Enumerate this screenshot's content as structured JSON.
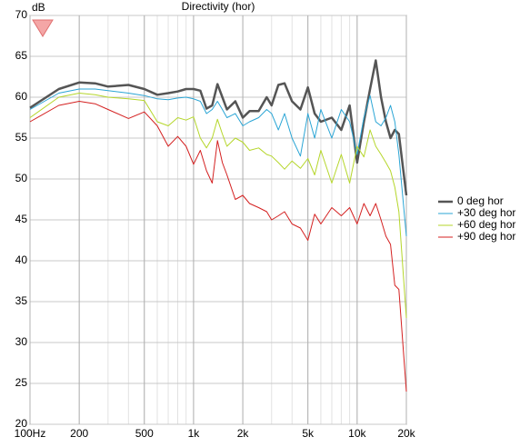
{
  "chart_data": {
    "type": "line",
    "title": "Directivity (hor)",
    "y_label": "dB",
    "x_scale": "log",
    "grid": true,
    "minor_grid": true,
    "legend": "right",
    "x": [
      100,
      150,
      200,
      250,
      300,
      400,
      500,
      600,
      700,
      800,
      900,
      1000,
      1100,
      1200,
      1300,
      1400,
      1500,
      1600,
      1800,
      2000,
      2200,
      2500,
      2800,
      3000,
      3300,
      3600,
      4000,
      4500,
      5000,
      5500,
      6000,
      7000,
      8000,
      9000,
      10000,
      11000,
      12000,
      13000,
      14000,
      15000,
      16000,
      17000,
      18000,
      20000
    ],
    "series": [
      {
        "name": "0 deg hor",
        "color": "#555555",
        "width": 2.5,
        "values": [
          58.7,
          61,
          61.8,
          61.7,
          61.3,
          61.5,
          61,
          60.3,
          60.5,
          60.7,
          61,
          61,
          60.8,
          58.6,
          59,
          61.6,
          60,
          58.5,
          59.5,
          57.5,
          58.3,
          58.3,
          60,
          59,
          61.5,
          61.7,
          59.5,
          58.5,
          61.2,
          58,
          57,
          57.5,
          56,
          59,
          52,
          57,
          61,
          64.5,
          60,
          57,
          55,
          56,
          55.5,
          48
        ]
      },
      {
        "name": "+30 deg hor",
        "color": "#2aa5d5",
        "width": 1,
        "values": [
          58.5,
          60.5,
          61,
          61,
          60.8,
          60.5,
          60.2,
          59.8,
          59.7,
          59.9,
          60,
          59.8,
          59.5,
          58,
          58.5,
          59.5,
          58.5,
          57.5,
          58,
          56.5,
          57,
          57.5,
          58.5,
          58,
          56,
          58,
          55,
          52.8,
          58,
          55,
          58.5,
          55,
          58.5,
          57,
          53,
          57.5,
          60.2,
          57,
          56.5,
          57.5,
          59,
          57,
          53,
          43
        ]
      },
      {
        "name": "+60 deg hor",
        "color": "#b5d62a",
        "width": 1,
        "values": [
          57.5,
          60,
          60.5,
          60.3,
          60,
          59.8,
          59.6,
          57,
          56.5,
          57.5,
          57.2,
          57.6,
          55,
          53.8,
          55,
          57.3,
          55.5,
          54,
          55,
          54.5,
          53.5,
          53.8,
          53,
          52.8,
          52,
          51.2,
          52.2,
          51.3,
          52.5,
          50.5,
          53.5,
          49.5,
          53,
          49.5,
          54,
          52.7,
          56,
          54,
          53,
          52,
          51,
          49,
          46,
          33
        ]
      },
      {
        "name": "+90 deg hor",
        "color": "#d42020",
        "width": 1,
        "values": [
          57,
          59,
          59.5,
          59.2,
          58.5,
          57.4,
          58.2,
          56.5,
          54,
          55.2,
          54,
          51.8,
          53.5,
          51,
          49.5,
          54.7,
          52,
          50.5,
          47.5,
          48,
          47,
          46.5,
          46,
          45,
          45.5,
          46,
          44.5,
          44,
          42.5,
          45.7,
          44.5,
          46.5,
          45.5,
          46.5,
          44.5,
          47,
          45.5,
          47,
          45,
          43,
          42,
          37,
          36.5,
          24
        ]
      }
    ],
    "xlim": [
      100,
      20000
    ],
    "xticks": [
      {
        "value": 100,
        "label": "100Hz"
      },
      200,
      500,
      {
        "value": 1000,
        "label": "1k"
      },
      {
        "value": 2000,
        "label": "2k"
      },
      {
        "value": 5000,
        "label": "5k"
      },
      {
        "value": 10000,
        "label": "10k"
      },
      {
        "value": 20000,
        "label": "20k"
      }
    ],
    "ylim": [
      20,
      70
    ],
    "yticks": [
      20,
      25,
      30,
      35,
      40,
      45,
      50,
      55,
      60,
      65,
      70
    ]
  }
}
